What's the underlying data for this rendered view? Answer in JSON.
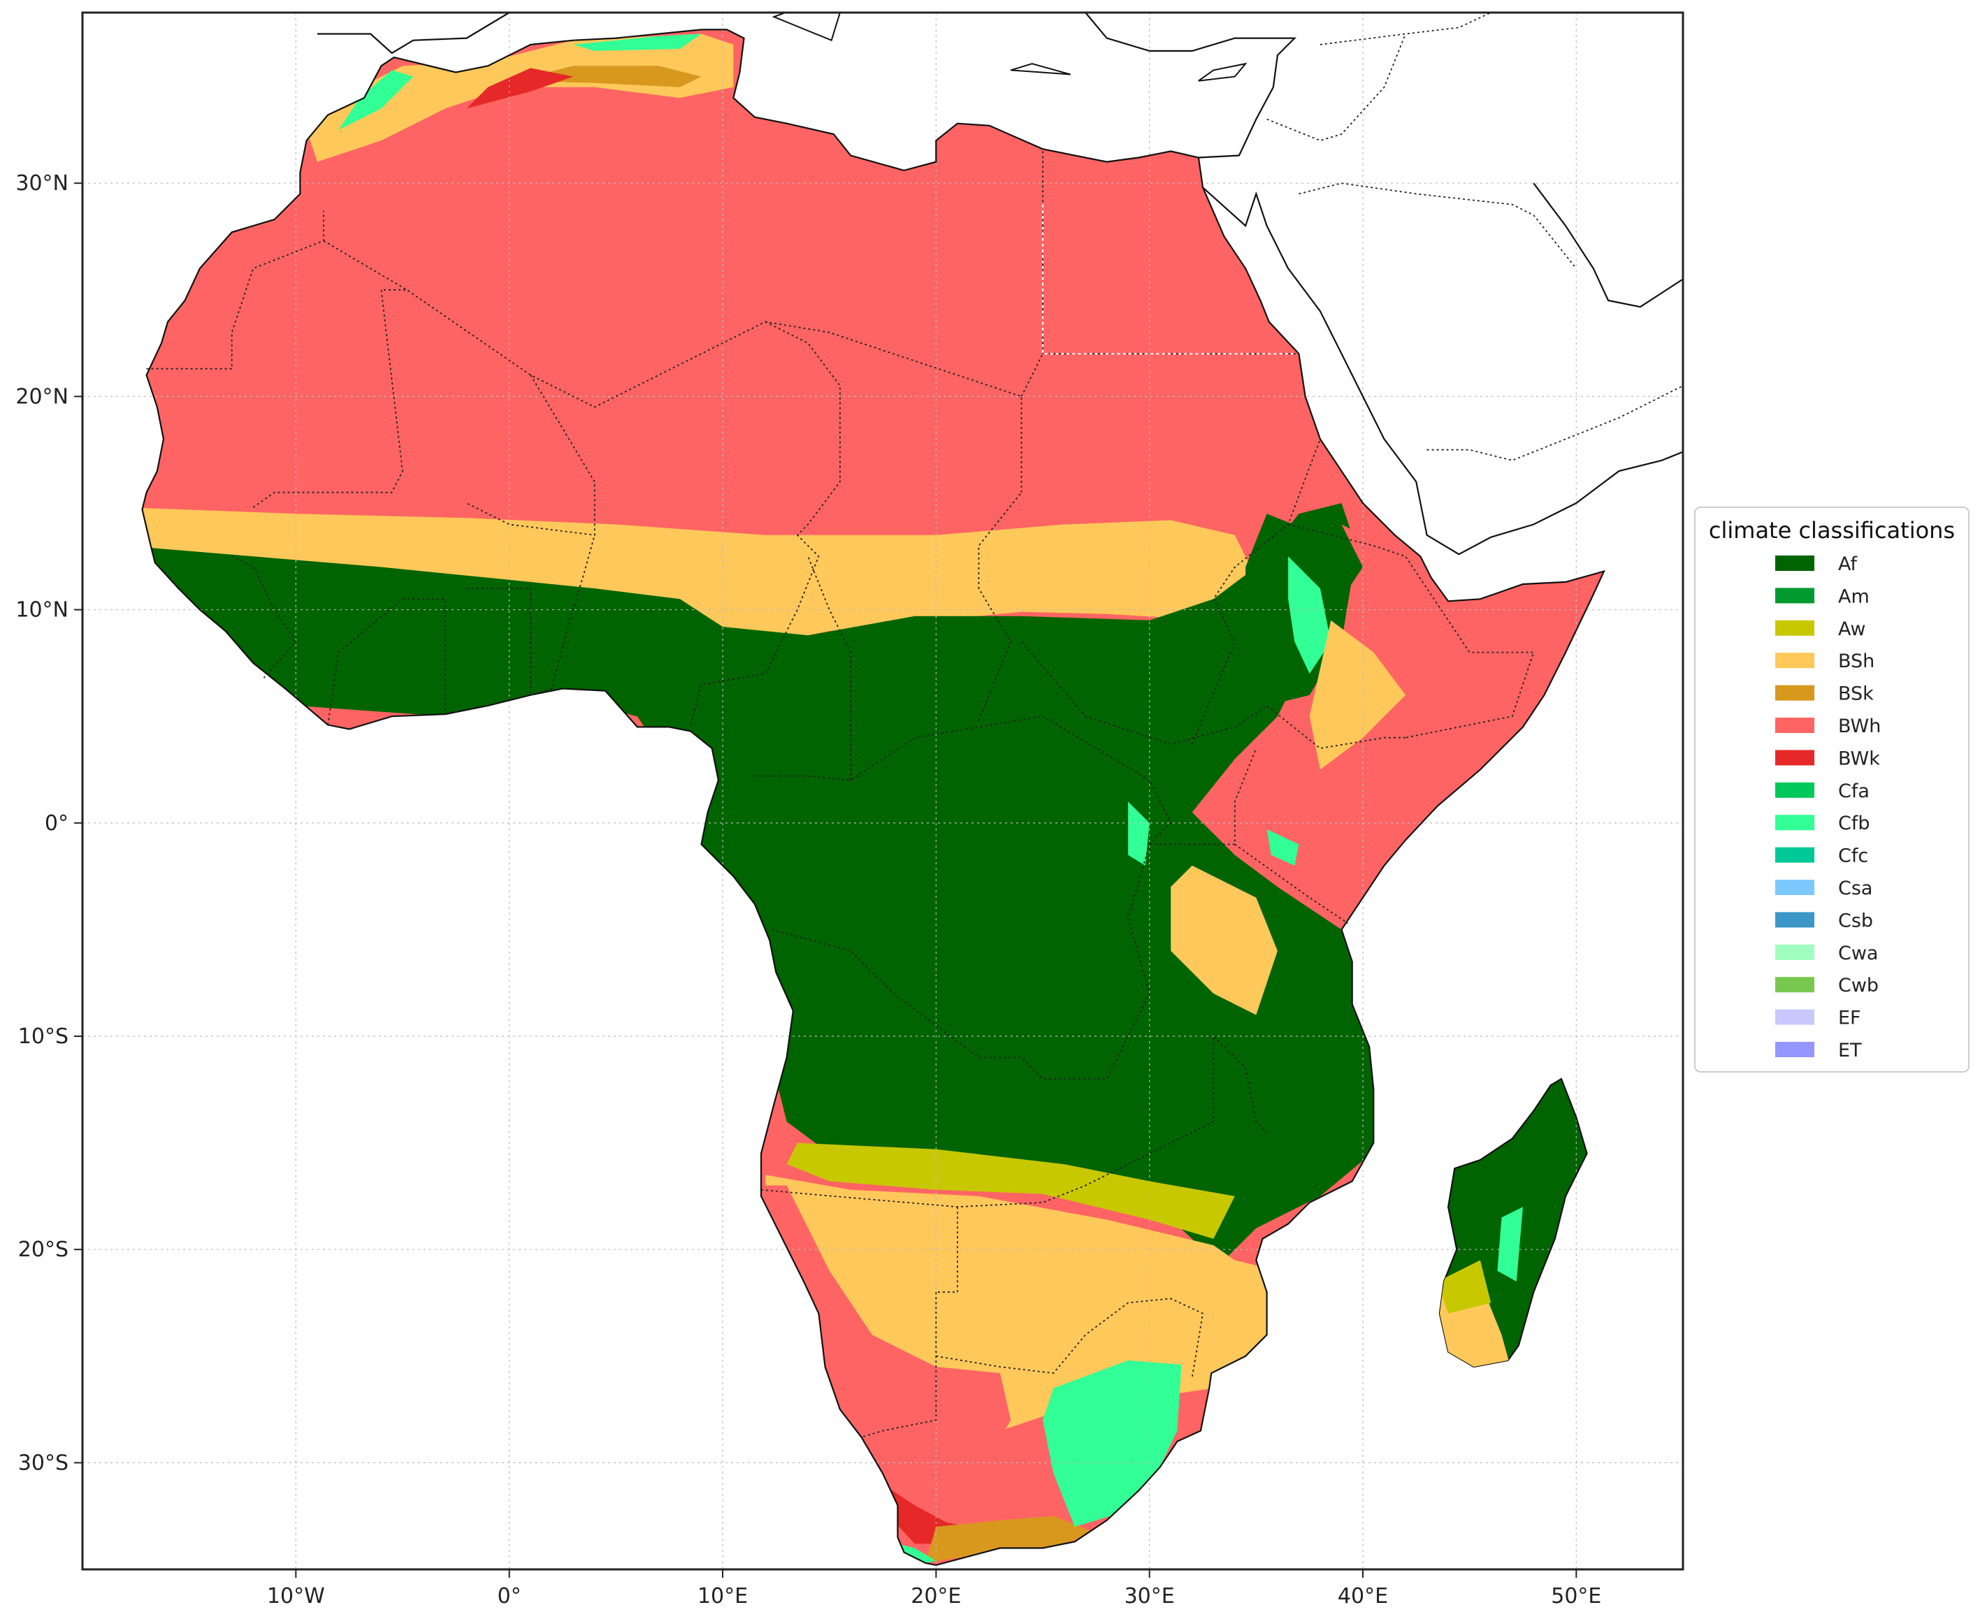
{
  "map": {
    "projection": "PlateCarree",
    "lon_range": [
      -20,
      55
    ],
    "lat_range": [
      -35,
      38
    ],
    "grid": true,
    "x_ticks": [
      {
        "lon": -10,
        "label": "10°W"
      },
      {
        "lon": 0,
        "label": "0°"
      },
      {
        "lon": 10,
        "label": "10°E"
      },
      {
        "lon": 20,
        "label": "20°E"
      },
      {
        "lon": 30,
        "label": "30°E"
      },
      {
        "lon": 40,
        "label": "40°E"
      },
      {
        "lon": 50,
        "label": "50°E"
      }
    ],
    "y_ticks": [
      {
        "lat": 30,
        "label": "30°N"
      },
      {
        "lat": 20,
        "label": "20°N"
      },
      {
        "lat": 10,
        "label": "10°N"
      },
      {
        "lat": 0,
        "label": "0°"
      },
      {
        "lat": -10,
        "label": "10°S"
      },
      {
        "lat": -20,
        "label": "20°S"
      },
      {
        "lat": -30,
        "label": "30°S"
      }
    ]
  },
  "legend": {
    "title": "climate classifications",
    "placement": "right",
    "items": [
      {
        "code": "Af",
        "color": "#006400"
      },
      {
        "code": "Am",
        "color": "#009a2e"
      },
      {
        "code": "Aw",
        "color": "#c8c800"
      },
      {
        "code": "BSh",
        "color": "#ffc85a"
      },
      {
        "code": "BSk",
        "color": "#d8981e"
      },
      {
        "code": "BWh",
        "color": "#ff6464"
      },
      {
        "code": "BWk",
        "color": "#e62828"
      },
      {
        "code": "Cfa",
        "color": "#00c85a"
      },
      {
        "code": "Cfb",
        "color": "#32ff96"
      },
      {
        "code": "Cfc",
        "color": "#00c896"
      },
      {
        "code": "Csa",
        "color": "#7dc8ff"
      },
      {
        "code": "Csb",
        "color": "#3c96c8"
      },
      {
        "code": "Cwa",
        "color": "#a0ffc0"
      },
      {
        "code": "Cwb",
        "color": "#78c850"
      },
      {
        "code": "EF",
        "color": "#c8c8ff"
      },
      {
        "code": "ET",
        "color": "#9696ff"
      }
    ]
  }
}
